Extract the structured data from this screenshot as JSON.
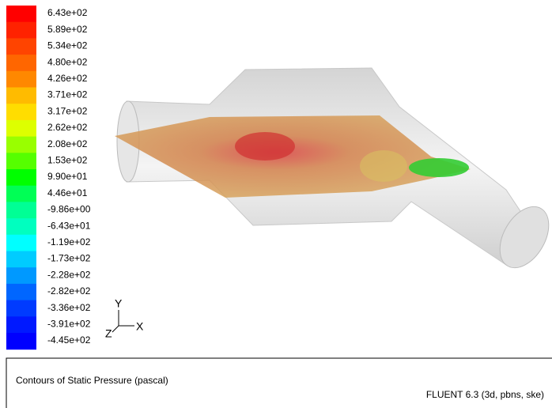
{
  "colorbar": {
    "labels": [
      "6.43e+02",
      "5.89e+02",
      "5.34e+02",
      "4.80e+02",
      "4.26e+02",
      "3.71e+02",
      "3.17e+02",
      "2.62e+02",
      "2.08e+02",
      "1.53e+02",
      "9.90e+01",
      "4.46e+01",
      "-9.86e+00",
      "-6.43e+01",
      "-1.19e+02",
      "-1.73e+02",
      "-2.28e+02",
      "-2.82e+02",
      "-3.36e+02",
      "-3.91e+02",
      "-4.45e+02"
    ],
    "colors": [
      "#ff0000",
      "#ff2200",
      "#ff4400",
      "#ff6600",
      "#ff8800",
      "#ffbb00",
      "#ffdd00",
      "#ddff00",
      "#99ff00",
      "#55ff00",
      "#00ff00",
      "#00ff55",
      "#00ff95",
      "#00ffbf",
      "#00ffff",
      "#00ccff",
      "#0099ff",
      "#0066ff",
      "#003bff",
      "#0019ff",
      "#0000ff"
    ]
  },
  "axes": {
    "y": "Y",
    "x": "X",
    "z": "Z"
  },
  "footer": {
    "title": "Contours of Static Pressure (pascal)",
    "solver": "FLUENT 6.3 (3d, pbns, ske)"
  }
}
